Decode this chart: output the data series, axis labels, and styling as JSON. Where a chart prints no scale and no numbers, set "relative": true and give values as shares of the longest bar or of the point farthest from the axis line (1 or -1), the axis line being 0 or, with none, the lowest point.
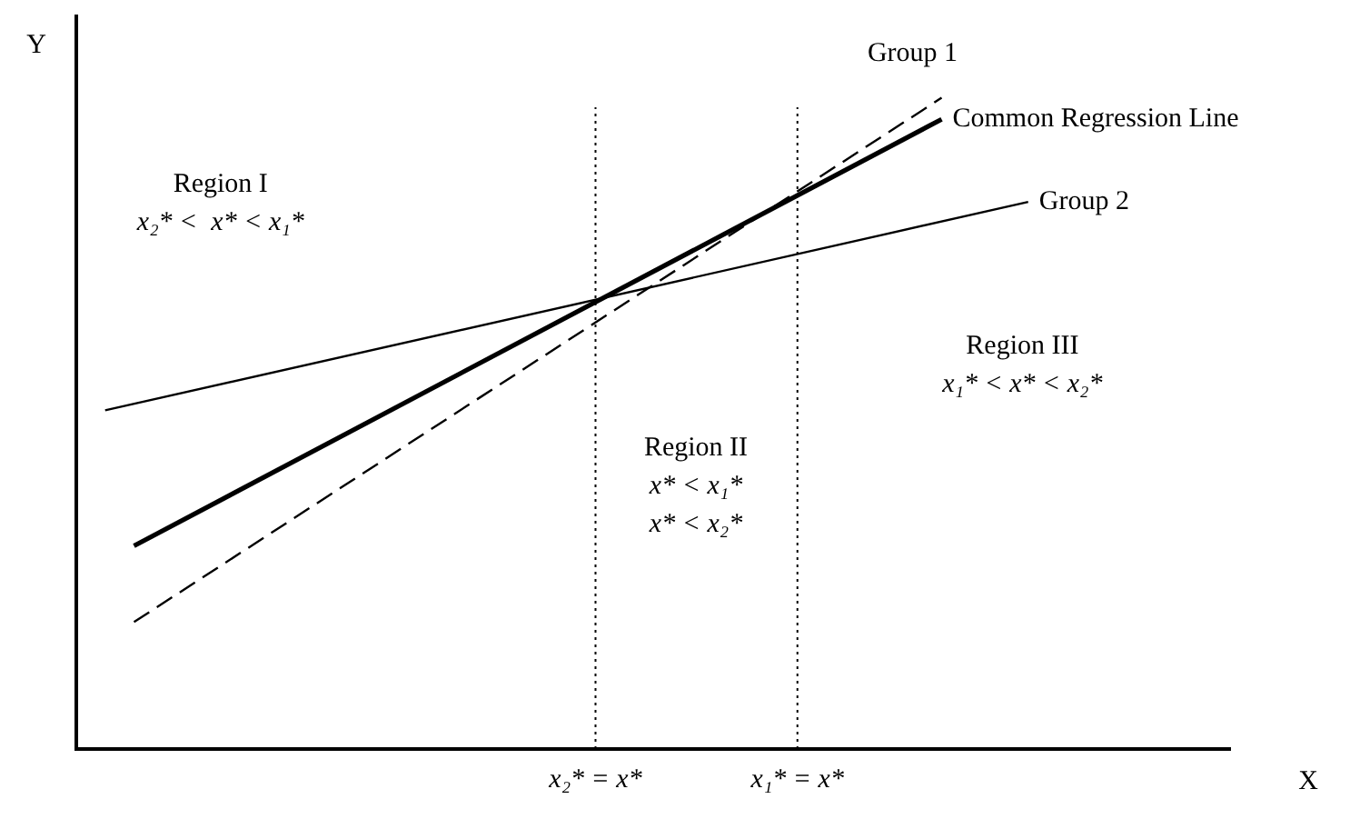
{
  "chart_data": {
    "type": "line",
    "relative": true,
    "xlabel": "X",
    "ylabel": "Y",
    "tick_labels": "x",
    "grid": false,
    "legend": false,
    "marker": "none",
    "categories": [
      null,
      null,
      null,
      null,
      null,
      null,
      null,
      null,
      null,
      null,
      null,
      null,
      null,
      null,
      null,
      null,
      null,
      null,
      "x₂* = x*",
      null,
      null,
      null,
      null,
      null,
      null,
      "x₁* = x*",
      null,
      null,
      null,
      null,
      null,
      null,
      null,
      null,
      null,
      null,
      null,
      null,
      null,
      null,
      null
    ],
    "series": [
      {
        "name": "Group 1",
        "color": "#000000",
        "line_style": "dashed",
        "values": [
          null,
          null,
          0.195,
          null,
          null,
          null,
          null,
          null,
          null,
          null,
          null,
          null,
          null,
          null,
          null,
          null,
          null,
          null,
          null,
          null,
          null,
          null,
          null,
          null,
          null,
          null,
          null,
          null,
          null,
          null,
          1,
          null,
          null,
          null,
          null,
          null,
          null,
          null,
          null,
          null,
          null
        ]
      },
      {
        "name": "Common Regression Line",
        "color": "#000000",
        "line_style": "solid",
        "values": [
          null,
          null,
          0.312,
          null,
          null,
          null,
          null,
          null,
          null,
          null,
          null,
          null,
          null,
          null,
          null,
          null,
          null,
          null,
          null,
          null,
          null,
          null,
          null,
          null,
          null,
          null,
          null,
          null,
          null,
          null,
          0.967,
          null,
          null,
          null,
          null,
          null,
          null,
          null,
          null,
          null,
          null
        ]
      },
      {
        "name": "Group 2",
        "color": "#000000",
        "line_style": "solid",
        "values": [
          null,
          0.52,
          null,
          null,
          null,
          null,
          null,
          null,
          null,
          null,
          null,
          null,
          null,
          null,
          null,
          null,
          null,
          null,
          null,
          null,
          null,
          null,
          null,
          null,
          null,
          null,
          null,
          null,
          null,
          null,
          null,
          null,
          null,
          0.84,
          null,
          null,
          null,
          null,
          null,
          null,
          null
        ]
      }
    ],
    "ref_lines": [
      {
        "axis": "x",
        "value": "x₂* = x*",
        "line_style": "dotted"
      },
      {
        "axis": "x",
        "value": "x₁* = x*",
        "line_style": "dotted"
      }
    ],
    "annotations": [
      "Region I\nx₂* <  x* < x₁*",
      "Region II\nx* < x₁*\nx* < x₂*",
      "Region III\nx₁* < x* < x₂*"
    ]
  }
}
